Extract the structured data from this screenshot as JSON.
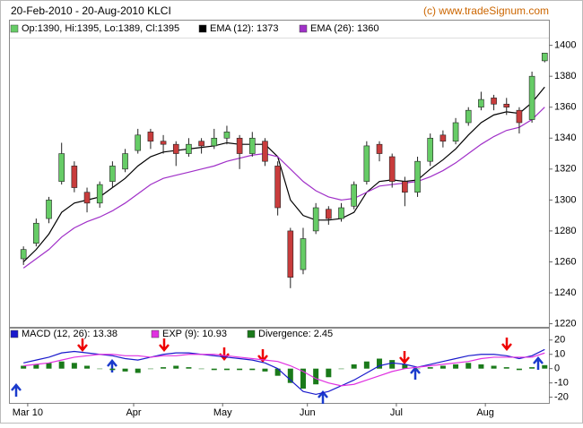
{
  "chart_data": [
    {
      "type": "candlestick",
      "title": "20-Feb-2010 - 20-Aug-2010 KLCI",
      "annotation": "(c) www.tradeSignum.com",
      "x": [
        2,
        5,
        8,
        11,
        14,
        17,
        20,
        23,
        26,
        29,
        32,
        35,
        38,
        41,
        44,
        47,
        50,
        53,
        56,
        59,
        62,
        65,
        68,
        71,
        74,
        77,
        80,
        83,
        86,
        89,
        92,
        95,
        98,
        101,
        104,
        107,
        110,
        113,
        116,
        119,
        122,
        125
      ],
      "xlim": [
        -1,
        126
      ],
      "ylim": [
        1218,
        1405
      ],
      "yticks": [
        1220,
        1240,
        1260,
        1280,
        1300,
        1320,
        1340,
        1360,
        1380,
        1400
      ],
      "up_color": "#66cc66",
      "down_color": "#c83c3c",
      "series": [
        {
          "name": "Op:1390, Hi:1395, Lo:1389, Cl:1395",
          "color": "#66cc66",
          "open": [
            1262,
            1272,
            1288,
            1312,
            1322,
            1305,
            1298,
            1312,
            1320,
            1332,
            1344,
            1338,
            1336,
            1330,
            1338,
            1335,
            1340,
            1340,
            1330,
            1338,
            1322,
            1280,
            1255,
            1280,
            1294,
            1288,
            1296,
            1312,
            1336,
            1328,
            1312,
            1305,
            1325,
            1342,
            1338,
            1350,
            1360,
            1366,
            1362,
            1358,
            1352,
            1390
          ],
          "high": [
            1270,
            1288,
            1302,
            1337,
            1325,
            1308,
            1312,
            1325,
            1333,
            1346,
            1346,
            1342,
            1338,
            1340,
            1340,
            1346,
            1348,
            1342,
            1344,
            1340,
            1325,
            1282,
            1282,
            1298,
            1296,
            1298,
            1312,
            1338,
            1338,
            1330,
            1315,
            1328,
            1343,
            1345,
            1353,
            1360,
            1370,
            1368,
            1366,
            1360,
            1383,
            1395
          ],
          "low": [
            1258,
            1270,
            1285,
            1310,
            1305,
            1292,
            1295,
            1308,
            1318,
            1330,
            1333,
            1330,
            1322,
            1328,
            1330,
            1333,
            1336,
            1320,
            1328,
            1322,
            1290,
            1243,
            1252,
            1278,
            1284,
            1286,
            1294,
            1310,
            1325,
            1308,
            1296,
            1302,
            1322,
            1334,
            1336,
            1348,
            1358,
            1358,
            1355,
            1343,
            1350,
            1389
          ],
          "close": [
            1268,
            1285,
            1300,
            1330,
            1308,
            1298,
            1310,
            1322,
            1330,
            1342,
            1338,
            1336,
            1330,
            1336,
            1335,
            1340,
            1344,
            1330,
            1340,
            1325,
            1295,
            1250,
            1275,
            1295,
            1288,
            1295,
            1310,
            1335,
            1330,
            1312,
            1305,
            1325,
            1340,
            1338,
            1350,
            1358,
            1365,
            1362,
            1360,
            1350,
            1380,
            1395
          ]
        },
        {
          "name": "EMA (12): 1373",
          "color": "#000000",
          "values": [
            1260,
            1268,
            1278,
            1292,
            1298,
            1300,
            1302,
            1308,
            1314,
            1322,
            1328,
            1331,
            1332,
            1333,
            1334,
            1335,
            1337,
            1336,
            1336,
            1336,
            1328,
            1300,
            1290,
            1287,
            1287,
            1288,
            1292,
            1305,
            1312,
            1313,
            1312,
            1313,
            1320,
            1326,
            1333,
            1342,
            1350,
            1355,
            1357,
            1356,
            1363,
            1373
          ]
        },
        {
          "name": "EMA (26): 1360",
          "color": "#a030c8",
          "values": [
            1256,
            1262,
            1268,
            1276,
            1282,
            1286,
            1289,
            1293,
            1298,
            1304,
            1310,
            1314,
            1316,
            1318,
            1320,
            1322,
            1325,
            1327,
            1329,
            1330,
            1328,
            1320,
            1312,
            1306,
            1302,
            1300,
            1301,
            1305,
            1309,
            1310,
            1311,
            1312,
            1315,
            1319,
            1324,
            1330,
            1336,
            1341,
            1345,
            1347,
            1352,
            1360
          ]
        }
      ]
    },
    {
      "type": "macd",
      "x": [
        2,
        5,
        8,
        11,
        14,
        17,
        20,
        23,
        26,
        29,
        32,
        35,
        38,
        41,
        44,
        47,
        50,
        53,
        56,
        59,
        62,
        65,
        68,
        71,
        74,
        77,
        80,
        83,
        86,
        89,
        92,
        95,
        98,
        101,
        104,
        107,
        110,
        113,
        116,
        119,
        122,
        125
      ],
      "xlim": [
        -1,
        126
      ],
      "ylim": [
        -24,
        28
      ],
      "yticks": [
        -20,
        -10,
        0,
        10,
        20
      ],
      "xticks": [
        {
          "value": 3,
          "label": "Mar 10"
        },
        {
          "value": 28,
          "label": "Apr"
        },
        {
          "value": 49,
          "label": "May"
        },
        {
          "value": 69,
          "label": "Jun"
        },
        {
          "value": 90,
          "label": "Jul"
        },
        {
          "value": 111,
          "label": "Aug"
        }
      ],
      "series": [
        {
          "name": "MACD (12, 26): 13.38",
          "color": "#1a1acc",
          "values": [
            4,
            6,
            8,
            11,
            12,
            11,
            10,
            9,
            7,
            6,
            8,
            10,
            11,
            11,
            10,
            9,
            8,
            7,
            6,
            4,
            0,
            -8,
            -16,
            -18,
            -16,
            -12,
            -8,
            -3,
            2,
            4,
            3,
            1,
            3,
            5,
            7,
            9,
            10,
            10,
            9,
            7,
            9,
            13.38
          ]
        },
        {
          "name": "EXP (9): 10.93",
          "color": "#e030e0",
          "values": [
            2,
            3,
            4,
            6,
            8,
            9,
            10,
            10,
            9,
            9,
            8,
            9,
            9,
            10,
            10,
            10,
            9,
            8,
            7,
            6,
            5,
            2,
            -2,
            -7,
            -10,
            -12,
            -11,
            -8,
            -5,
            -2,
            0,
            1,
            2,
            3,
            4,
            5,
            7,
            8,
            8,
            8,
            8,
            10.93
          ]
        },
        {
          "name": "Divergence: 2.45",
          "color": "#1a7a1a",
          "type": "bar",
          "values": [
            2,
            3,
            4,
            5,
            4,
            2,
            0,
            -1,
            -2,
            -3,
            0,
            1,
            2,
            1,
            0,
            -1,
            -1,
            -1,
            -1,
            -2,
            -5,
            -10,
            -14,
            -11,
            -6,
            0,
            3,
            5,
            7,
            6,
            3,
            0,
            1,
            2,
            3,
            4,
            3,
            2,
            1,
            -1,
            1,
            2.45
          ]
        }
      ]
    }
  ]
}
